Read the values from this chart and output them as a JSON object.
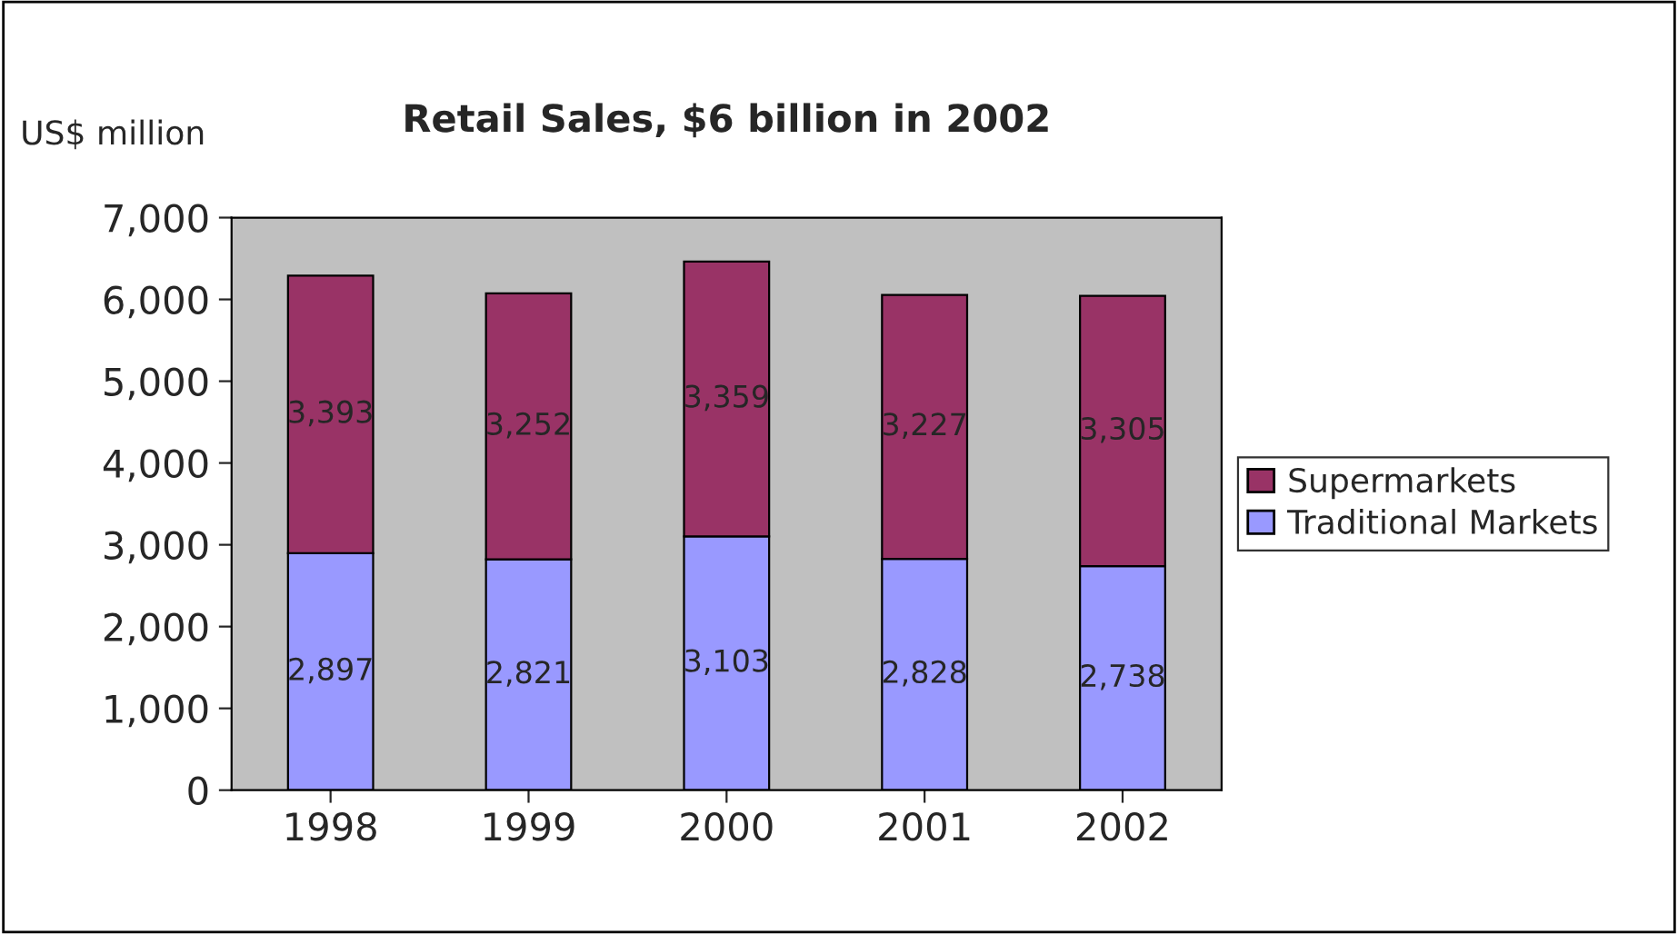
{
  "chart_data": {
    "type": "bar",
    "title": "Retail Sales, $6 billion in 2002",
    "ylabel": "US$ million",
    "categories": [
      "1998",
      "1999",
      "2000",
      "2001",
      "2002"
    ],
    "stacked": true,
    "series": [
      {
        "name": "Traditional Markets",
        "color": "#9999ff",
        "values": [
          2897,
          2821,
          3103,
          2828,
          2738
        ],
        "value_labels": [
          "2,897",
          "2,821",
          "3,103",
          "2,828",
          "2,738"
        ]
      },
      {
        "name": "Supermarkets",
        "color": "#993366",
        "values": [
          3393,
          3252,
          3359,
          3227,
          3305
        ],
        "value_labels": [
          "3,393",
          "3,252",
          "3,359",
          "3,227",
          "3,305"
        ]
      }
    ],
    "ylim": [
      0,
      7000
    ],
    "yticks": [
      0,
      {
        "value": 1000,
        "label": "1,000"
      },
      {
        "value": 2000,
        "label": "2,000"
      },
      {
        "value": 3000,
        "label": "3,000"
      },
      {
        "value": 4000,
        "label": "4,000"
      },
      {
        "value": 5000,
        "label": "5,000"
      },
      {
        "value": 6000,
        "label": "6,000"
      },
      {
        "value": 7000,
        "label": "7,000"
      }
    ],
    "grid": false,
    "legend": "right"
  }
}
